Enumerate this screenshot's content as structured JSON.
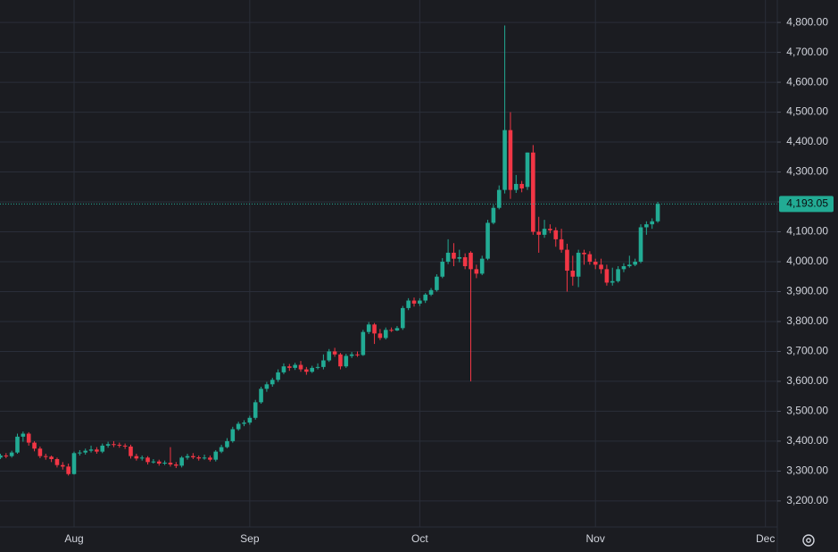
{
  "chart_data": {
    "type": "candlestick",
    "up_color": "#22ab94",
    "down_color": "#f23645",
    "grid": true,
    "categories": [
      null,
      null,
      null,
      null,
      null,
      null,
      null,
      null,
      null,
      null,
      null,
      null,
      null,
      "Aug",
      null,
      null,
      null,
      null,
      null,
      null,
      null,
      null,
      null,
      null,
      null,
      null,
      null,
      null,
      null,
      null,
      null,
      null,
      null,
      null,
      null,
      null,
      null,
      null,
      null,
      null,
      null,
      null,
      null,
      null,
      "Sep",
      null,
      null,
      null,
      null,
      null,
      null,
      null,
      null,
      null,
      null,
      null,
      null,
      null,
      null,
      null,
      null,
      null,
      null,
      null,
      null,
      null,
      null,
      null,
      null,
      null,
      null,
      null,
      null,
      null,
      "Oct",
      null,
      null,
      null,
      null,
      null,
      null,
      null,
      null,
      null,
      null,
      null,
      null,
      null,
      null,
      null,
      null,
      null,
      null,
      null,
      null,
      null,
      null,
      null,
      null,
      null,
      null,
      null,
      null,
      null,
      null,
      "Nov",
      null,
      null,
      null,
      null,
      null,
      null,
      null,
      null,
      null,
      null,
      null,
      null,
      null,
      null,
      null,
      null,
      null,
      null,
      null,
      null,
      null,
      null,
      null,
      null,
      null,
      null,
      null,
      null,
      null,
      "Dec"
    ],
    "open": [
      3345,
      3352,
      3350,
      3362,
      3415,
      3425,
      3395,
      3375,
      3350,
      3348,
      3340,
      3320,
      3315,
      3290,
      3360,
      3362,
      3368,
      3372,
      3365,
      3385,
      3390,
      3388,
      3385,
      3382,
      3350,
      3342,
      3345,
      3330,
      3332,
      3325,
      3328,
      3322,
      3318,
      3345,
      3350,
      3346,
      3342,
      3345,
      3338,
      3365,
      3380,
      3400,
      3440,
      3458,
      3462,
      3478,
      3530,
      3575,
      3590,
      3605,
      3630,
      3650,
      3645,
      3655,
      3640,
      3632,
      3645,
      3648,
      3670,
      3700,
      3690,
      3650,
      3685,
      3690,
      3688,
      3765,
      3790,
      3760,
      3745,
      3772,
      3770,
      3778,
      3845,
      3870,
      3860,
      3870,
      3890,
      3905,
      3950,
      4000,
      4030,
      4010,
      4015,
      4030,
      3975,
      3960,
      4010,
      4130,
      4180,
      4240,
      4440,
      4240,
      4260,
      4250,
      4365,
      4100,
      4090,
      4110,
      4105,
      4075,
      4040,
      3970,
      3950,
      4030,
      4025,
      4000,
      3990,
      3975,
      3930,
      3935,
      3975,
      3985,
      3990,
      4000,
      4115,
      4125,
      4135,
      null,
      null,
      null,
      null,
      null,
      null,
      null,
      null,
      null,
      null,
      null,
      null,
      null,
      null,
      null,
      null,
      null,
      null,
      null
    ],
    "high": [
      3358,
      3360,
      3368,
      3425,
      3432,
      3430,
      3400,
      3382,
      3358,
      3352,
      3345,
      3330,
      3325,
      3365,
      3370,
      3375,
      3385,
      3380,
      3392,
      3398,
      3400,
      3395,
      3392,
      3388,
      3358,
      3352,
      3350,
      3340,
      3338,
      3335,
      3380,
      3330,
      3350,
      3358,
      3360,
      3352,
      3355,
      3352,
      3370,
      3388,
      3410,
      3448,
      3465,
      3470,
      3485,
      3538,
      3582,
      3598,
      3612,
      3640,
      3660,
      3658,
      3662,
      3668,
      3648,
      3652,
      3660,
      3690,
      3708,
      3712,
      3695,
      3692,
      3698,
      3700,
      3772,
      3798,
      3795,
      3775,
      3780,
      3780,
      3785,
      3852,
      3878,
      3880,
      3878,
      3895,
      3912,
      3958,
      4012,
      4075,
      4062,
      4040,
      4028,
      4035,
      3990,
      4020,
      4140,
      4190,
      4255,
      4790,
      4500,
      4290,
      4270,
      4365,
      4390,
      4150,
      4140,
      4125,
      4115,
      4110,
      4060,
      4020,
      4040,
      4040,
      4035,
      4010,
      4010,
      3990,
      3980,
      3985,
      3995,
      4020,
      4010,
      4125,
      4135,
      4145,
      4200,
      null,
      null,
      null,
      null,
      null,
      null,
      null,
      null,
      null,
      null,
      null,
      null,
      null,
      null,
      null,
      null,
      null,
      null,
      null
    ],
    "low": [
      3340,
      3343,
      3345,
      3358,
      3398,
      3385,
      3366,
      3343,
      3338,
      3330,
      3312,
      3305,
      3285,
      3288,
      3352,
      3355,
      3362,
      3358,
      3360,
      3378,
      3380,
      3378,
      3374,
      3342,
      3335,
      3335,
      3322,
      3325,
      3318,
      3320,
      3315,
      3310,
      3312,
      3338,
      3340,
      3335,
      3338,
      3332,
      3332,
      3360,
      3376,
      3395,
      3435,
      3450,
      3455,
      3472,
      3525,
      3565,
      3582,
      3598,
      3624,
      3635,
      3638,
      3632,
      3622,
      3628,
      3640,
      3640,
      3665,
      3682,
      3640,
      3645,
      3678,
      3682,
      3685,
      3758,
      3725,
      3738,
      3740,
      3765,
      3768,
      3772,
      3838,
      3850,
      3852,
      3862,
      3885,
      3900,
      3945,
      3992,
      3985,
      3998,
      3975,
      3600,
      3945,
      3955,
      4005,
      4125,
      4175,
      4228,
      4210,
      4230,
      4232,
      4240,
      4090,
      4030,
      4080,
      4095,
      4050,
      4030,
      3900,
      3920,
      3915,
      3990,
      3990,
      3975,
      3960,
      3920,
      3920,
      3930,
      3965,
      3980,
      3985,
      3995,
      4090,
      4110,
      4130,
      null,
      null,
      null,
      null,
      null,
      null,
      null,
      null,
      null,
      null,
      null,
      null,
      null,
      null,
      null,
      null,
      null,
      null,
      null
    ],
    "close": [
      3352,
      3350,
      3362,
      3415,
      3425,
      3395,
      3375,
      3350,
      3348,
      3340,
      3320,
      3315,
      3290,
      3360,
      3362,
      3368,
      3372,
      3365,
      3385,
      3390,
      3388,
      3385,
      3382,
      3350,
      3342,
      3345,
      3330,
      3332,
      3325,
      3328,
      3322,
      3318,
      3345,
      3350,
      3346,
      3342,
      3345,
      3338,
      3365,
      3380,
      3400,
      3440,
      3458,
      3462,
      3478,
      3530,
      3575,
      3590,
      3605,
      3630,
      3650,
      3645,
      3655,
      3640,
      3632,
      3645,
      3648,
      3670,
      3700,
      3690,
      3650,
      3685,
      3690,
      3688,
      3765,
      3790,
      3760,
      3745,
      3772,
      3770,
      3778,
      3845,
      3870,
      3860,
      3870,
      3890,
      3905,
      3950,
      4000,
      4030,
      4010,
      4015,
      3985,
      3975,
      3960,
      4010,
      4130,
      4180,
      4240,
      4440,
      4240,
      4260,
      4245,
      4365,
      4100,
      4090,
      4110,
      4105,
      4075,
      4040,
      3970,
      3950,
      4030,
      4025,
      4000,
      3990,
      3975,
      3930,
      3935,
      3975,
      3985,
      3990,
      4000,
      4115,
      4125,
      4135,
      4193.05,
      null,
      null,
      null,
      null,
      null,
      null,
      null,
      null,
      null,
      null,
      null,
      null,
      null,
      null,
      null,
      null,
      null,
      null,
      null
    ],
    "last_price": {
      "value": 4193.05,
      "label": "4,193.05"
    },
    "ylim": [
      3113,
      4875
    ],
    "yticks": [
      {
        "value": 3200,
        "label": "3,200.00"
      },
      {
        "value": 3300,
        "label": "3,300.00"
      },
      {
        "value": 3400,
        "label": "3,400.00"
      },
      {
        "value": 3500,
        "label": "3,500.00"
      },
      {
        "value": 3600,
        "label": "3,600.00"
      },
      {
        "value": 3700,
        "label": "3,700.00"
      },
      {
        "value": 3800,
        "label": "3,800.00"
      },
      {
        "value": 3900,
        "label": "3,900.00"
      },
      {
        "value": 4000,
        "label": "4,000.00"
      },
      {
        "value": 4100,
        "label": "4,100.00"
      },
      {
        "value": 4200,
        "label": "4,200.00"
      },
      {
        "value": 4300,
        "label": "4,300.00"
      },
      {
        "value": 4400,
        "label": "4,400.00"
      },
      {
        "value": 4500,
        "label": "4,500.00"
      },
      {
        "value": 4600,
        "label": "4,600.00"
      },
      {
        "value": 4700,
        "label": "4,700.00"
      },
      {
        "value": 4800,
        "label": "4,800.00"
      }
    ]
  }
}
